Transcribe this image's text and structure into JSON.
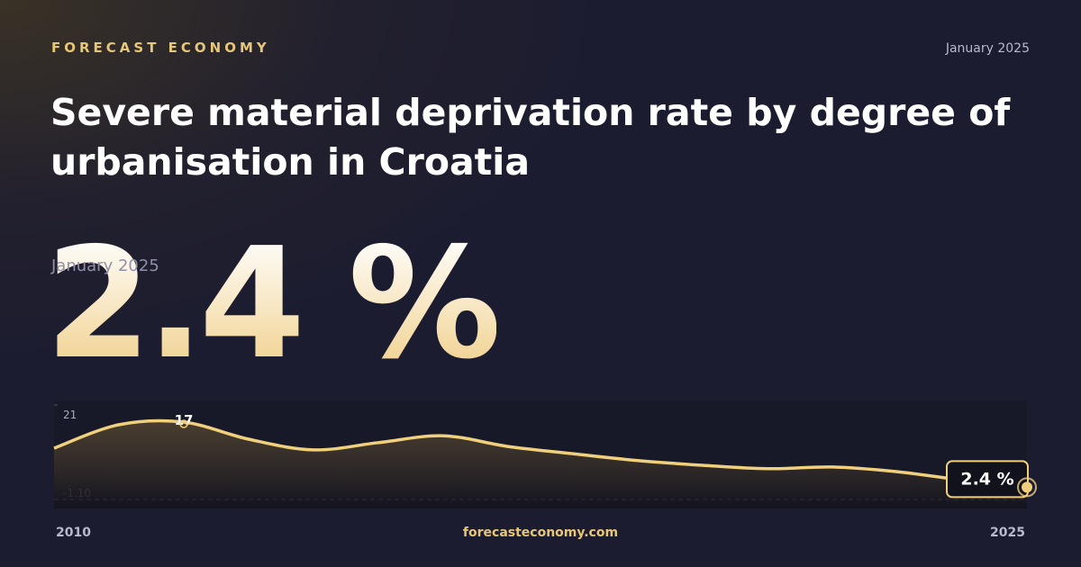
{
  "brand": "FORECAST ECONOMY",
  "date": "January 2025",
  "site": "forecasteconomy.com",
  "chart_data": {
    "type": "line",
    "title": "Severe material deprivation rate by degree of urbanisation in Croatia",
    "x": [
      2010,
      2011,
      2012,
      2013,
      2014,
      2015,
      2016,
      2017,
      2018,
      2019,
      2020,
      2021,
      2022,
      2023,
      2024,
      2025
    ],
    "values": [
      10.9,
      16.4,
      17,
      13.0,
      10.5,
      12.2,
      13.8,
      11.3,
      9.6,
      8.0,
      6.9,
      6.1,
      6.5,
      5.4,
      3.5,
      2.4
    ],
    "value_labels": [
      null,
      null,
      "17",
      null,
      null,
      null,
      null,
      null,
      null,
      null,
      null,
      null,
      null,
      null,
      null,
      "2.4 %"
    ],
    "color": "#f0cf7d",
    "xlim": [
      2010,
      2025
    ],
    "xticks": [
      2010,
      2025
    ],
    "ylim": [
      -1.1,
      21
    ],
    "yticks": [
      21,
      {
        "value": -1.1,
        "label": "-1.10"
      }
    ]
  }
}
